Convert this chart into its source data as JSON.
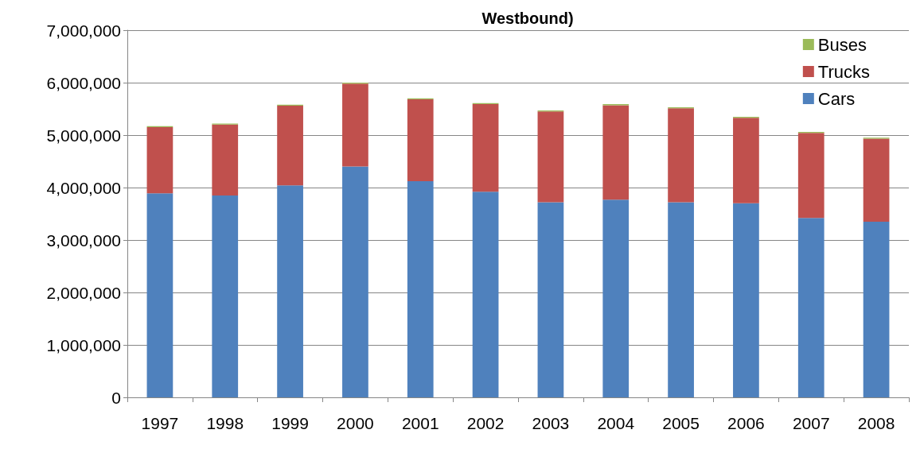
{
  "chart_data": {
    "type": "bar",
    "title": "Westbound)",
    "stacked": true,
    "categories": [
      "1997",
      "1998",
      "1999",
      "2000",
      "2001",
      "2002",
      "2003",
      "2004",
      "2005",
      "2006",
      "2007",
      "2008"
    ],
    "series": [
      {
        "name": "Cars",
        "color": "#4f81bd",
        "values": [
          3890000,
          3850000,
          4040000,
          4400000,
          4120000,
          3920000,
          3720000,
          3770000,
          3720000,
          3700000,
          3420000,
          3350000
        ]
      },
      {
        "name": "Trucks",
        "color": "#c0504d",
        "values": [
          1260000,
          1350000,
          1520000,
          1580000,
          1560000,
          1670000,
          1730000,
          1800000,
          1790000,
          1630000,
          1620000,
          1580000
        ]
      },
      {
        "name": "Buses",
        "color": "#9bbb59",
        "values": [
          20000,
          20000,
          20000,
          20000,
          20000,
          20000,
          20000,
          20000,
          20000,
          20000,
          20000,
          20000
        ]
      }
    ],
    "ylim": [
      0,
      7000000
    ],
    "yticks": [
      0,
      {
        "value": 1000000,
        "label": "1,000,000"
      },
      {
        "value": 2000000,
        "label": "2,000,000"
      },
      {
        "value": 3000000,
        "label": "3,000,000"
      },
      {
        "value": 4000000,
        "label": "4,000,000"
      },
      {
        "value": 5000000,
        "label": "5,000,000"
      },
      {
        "value": 6000000,
        "label": "6,000,000"
      },
      {
        "value": 7000000,
        "label": "7,000,000"
      }
    ],
    "grid": "y",
    "legend": "top right"
  }
}
